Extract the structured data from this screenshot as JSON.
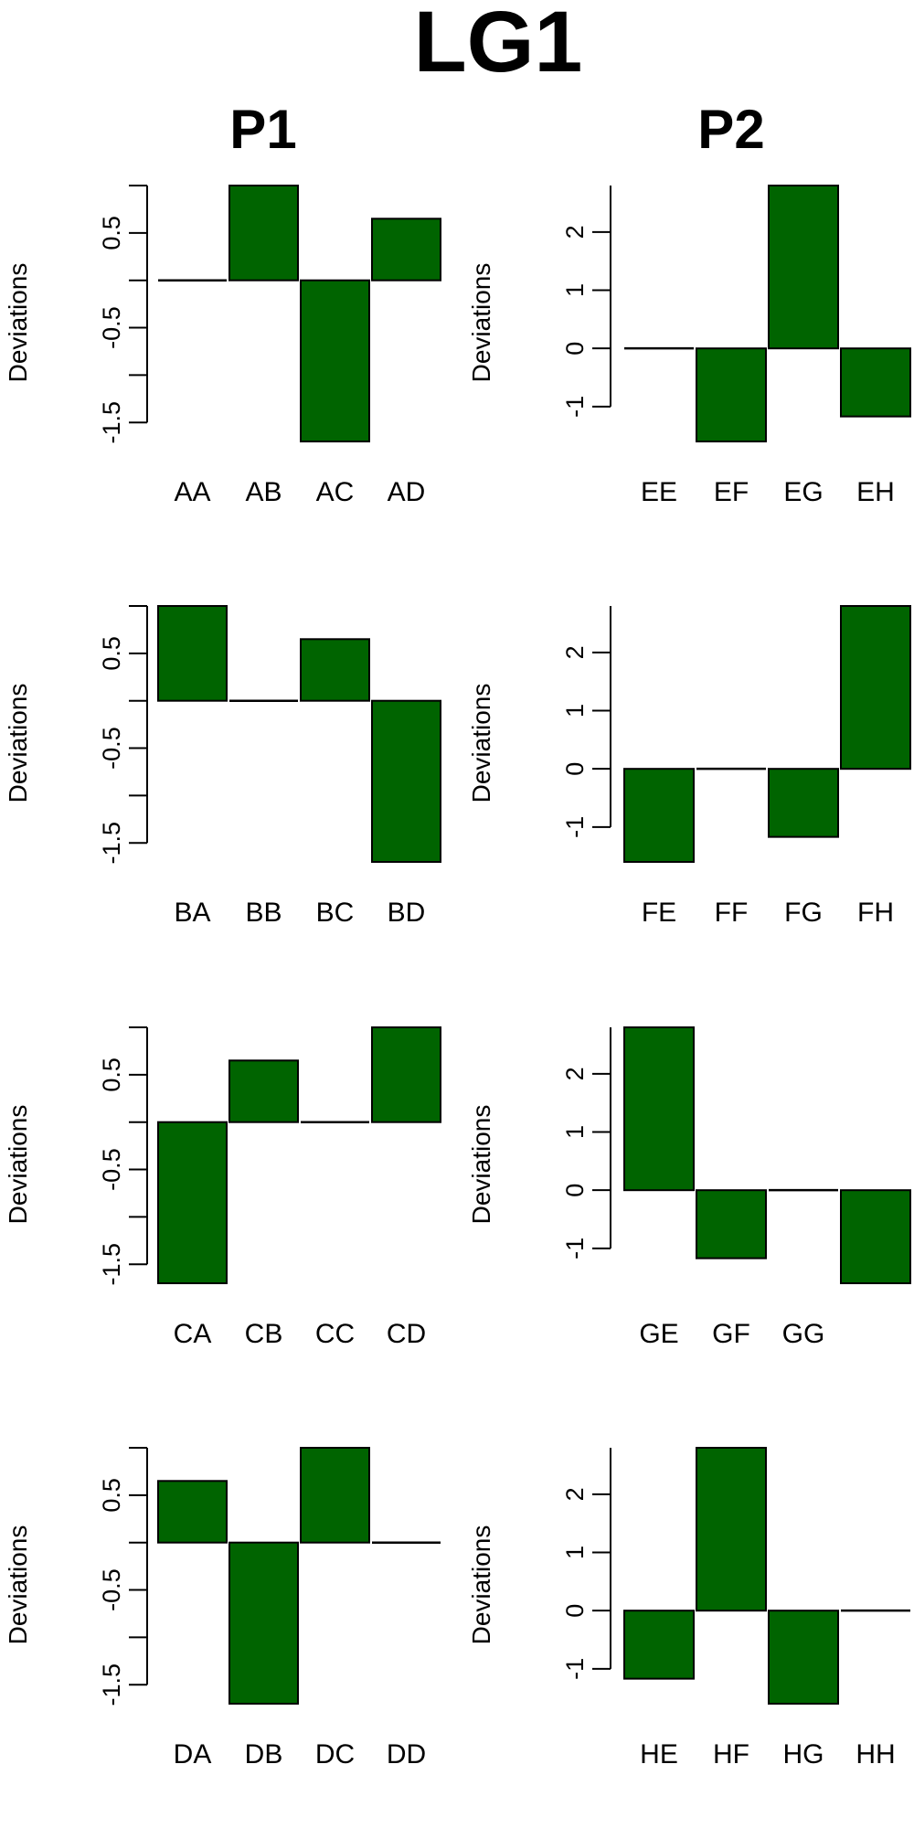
{
  "title": "LG1",
  "column_titles": [
    "P1",
    "P2"
  ],
  "bar_color": "#006400",
  "chart_data": [
    {
      "type": "bar",
      "panel": "P1 row 1",
      "ylabel": "Deviations",
      "categories": [
        "AA",
        "AB",
        "AC",
        "AD"
      ],
      "values": [
        0,
        1.0,
        -1.7,
        0.65
      ],
      "ylim": [
        -1.7,
        1.0
      ],
      "yticks": [
        0.5,
        -0.5,
        -1.5
      ],
      "ytick_labels": [
        "0.5",
        "-0.5",
        "-1.5"
      ]
    },
    {
      "type": "bar",
      "panel": "P2 row 1",
      "ylabel": "Deviations",
      "categories": [
        "EE",
        "EF",
        "EG",
        "EH"
      ],
      "values": [
        0,
        -1.6,
        2.8,
        -1.17
      ],
      "ylim": [
        -1.6,
        2.8
      ],
      "yticks": [
        2,
        1,
        0,
        -1
      ],
      "ytick_labels": [
        "2",
        "1",
        "0",
        "-1"
      ]
    },
    {
      "type": "bar",
      "panel": "P1 row 2",
      "ylabel": "Deviations",
      "categories": [
        "BA",
        "BB",
        "BC",
        "BD"
      ],
      "values": [
        1.0,
        0,
        0.65,
        -1.7
      ],
      "ylim": [
        -1.7,
        1.0
      ],
      "yticks": [
        0.5,
        -0.5,
        -1.5
      ],
      "ytick_labels": [
        "0.5",
        "-0.5",
        "-1.5"
      ]
    },
    {
      "type": "bar",
      "panel": "P2 row 2",
      "ylabel": "Deviations",
      "categories": [
        "FE",
        "FF",
        "FG",
        "FH"
      ],
      "values": [
        -1.6,
        0,
        -1.17,
        2.8
      ],
      "ylim": [
        -1.6,
        2.8
      ],
      "yticks": [
        2,
        1,
        0,
        -1
      ],
      "ytick_labels": [
        "2",
        "1",
        "0",
        "-1"
      ]
    },
    {
      "type": "bar",
      "panel": "P1 row 3",
      "ylabel": "Deviations",
      "categories": [
        "CA",
        "CB",
        "CC",
        "CD"
      ],
      "values": [
        -1.7,
        0.65,
        0,
        1.0
      ],
      "ylim": [
        -1.7,
        1.0
      ],
      "yticks": [
        0.5,
        -0.5,
        -1.5
      ],
      "ytick_labels": [
        "0.5",
        "-0.5",
        "-1.5"
      ]
    },
    {
      "type": "bar",
      "panel": "P2 row 3",
      "ylabel": "Deviations",
      "categories": [
        "GE",
        "GF",
        "GG",
        ""
      ],
      "values": [
        2.8,
        -1.17,
        0,
        -1.6
      ],
      "ylim": [
        -1.6,
        2.8
      ],
      "yticks": [
        2,
        1,
        0,
        -1
      ],
      "ytick_labels": [
        "2",
        "1",
        "0",
        "-1"
      ]
    },
    {
      "type": "bar",
      "panel": "P1 row 4",
      "ylabel": "Deviations",
      "categories": [
        "DA",
        "DB",
        "DC",
        "DD"
      ],
      "values": [
        0.65,
        -1.7,
        1.0,
        0
      ],
      "ylim": [
        -1.7,
        1.0
      ],
      "yticks": [
        0.5,
        -0.5,
        -1.5
      ],
      "ytick_labels": [
        "0.5",
        "-0.5",
        "-1.5"
      ]
    },
    {
      "type": "bar",
      "panel": "P2 row 4",
      "ylabel": "Deviations",
      "categories": [
        "HE",
        "HF",
        "HG",
        "HH"
      ],
      "values": [
        -1.17,
        2.8,
        -1.6,
        0
      ],
      "ylim": [
        -1.6,
        2.8
      ],
      "yticks": [
        2,
        1,
        0,
        -1
      ],
      "ytick_labels": [
        "2",
        "1",
        "0",
        "-1"
      ]
    }
  ]
}
